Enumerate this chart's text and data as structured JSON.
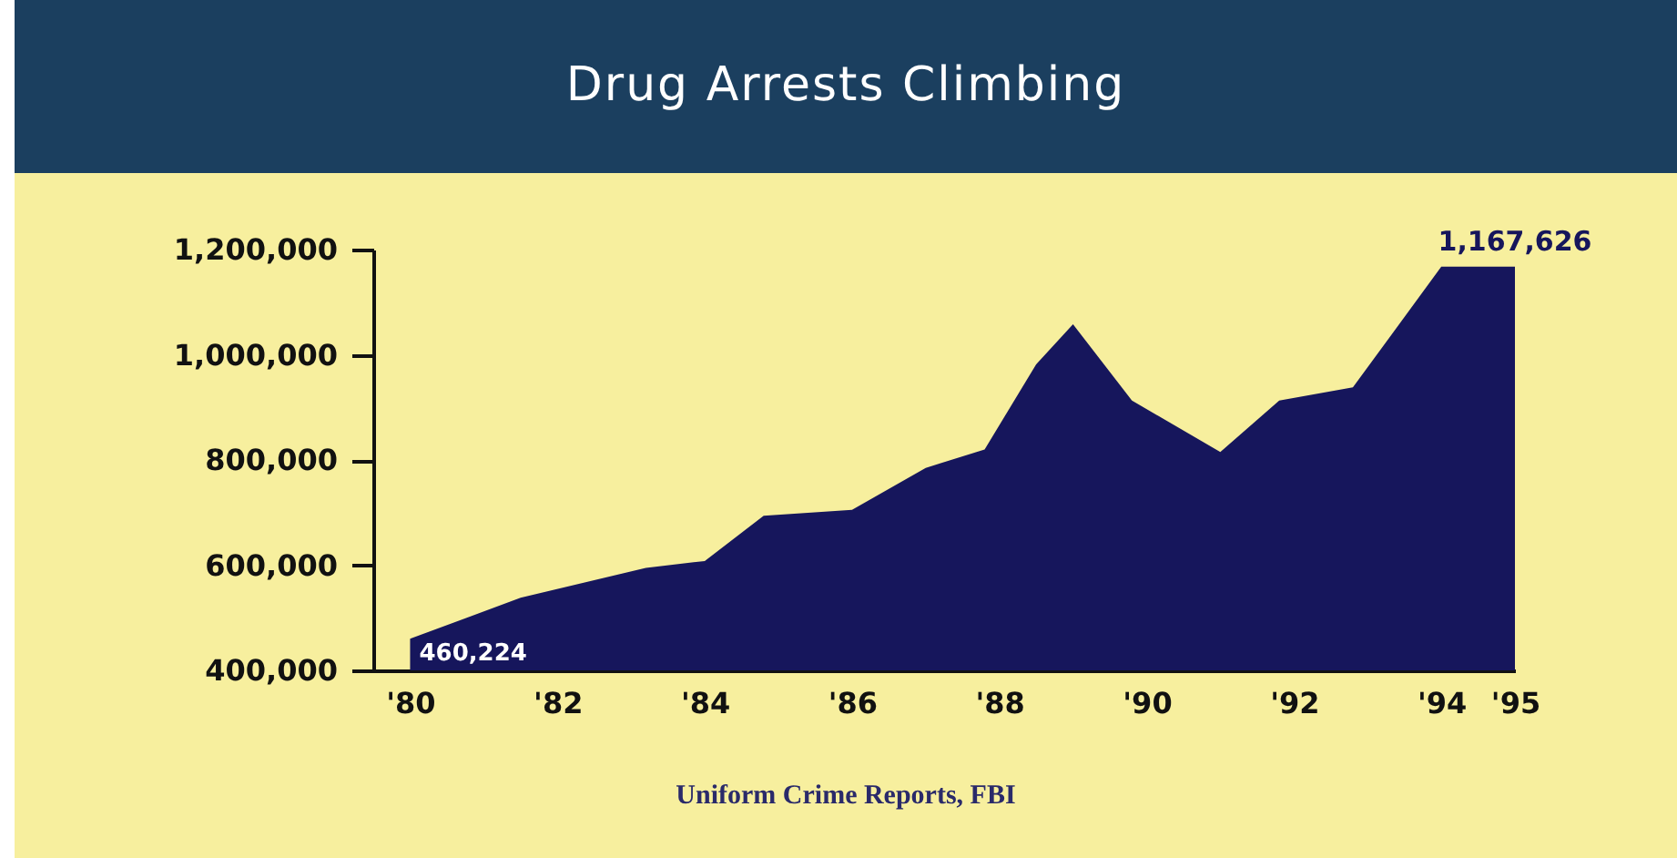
{
  "chart_data": {
    "type": "area",
    "title": "Drug Arrests Climbing",
    "x": [
      1980,
      1981.5,
      1983.2,
      1984,
      1984.8,
      1986,
      1987,
      1987.8,
      1988.5,
      1989,
      1989.8,
      1991,
      1991.8,
      1992.8,
      1994,
      1995
    ],
    "series": [
      {
        "color": "#16165c",
        "values": [
          460224,
          538000,
          595000,
          608000,
          694000,
          705000,
          785000,
          820000,
          982000,
          1058000,
          913000,
          815000,
          913000,
          938000,
          1167626,
          1167626
        ],
        "value_labels": [
          "460,224",
          null,
          null,
          null,
          null,
          null,
          null,
          null,
          null,
          null,
          null,
          null,
          null,
          null,
          null,
          "1,167,626"
        ]
      }
    ],
    "xlim": [
      1979.5,
      1995
    ],
    "ylim": [
      400000,
      1200000
    ],
    "xticks": [
      {
        "value": 1980,
        "label": "'80"
      },
      {
        "value": 1982,
        "label": "'82"
      },
      {
        "value": 1984,
        "label": "'84"
      },
      {
        "value": 1986,
        "label": "'86"
      },
      {
        "value": 1988,
        "label": "'88"
      },
      {
        "value": 1990,
        "label": "'90"
      },
      {
        "value": 1992,
        "label": "'92"
      },
      {
        "value": 1994,
        "label": "'94"
      },
      {
        "value": 1995,
        "label": "'95"
      }
    ],
    "yticks": [
      {
        "value": 400000,
        "label": "400,000"
      },
      {
        "value": 600000,
        "label": "600,000"
      },
      {
        "value": 800000,
        "label": "800,000"
      },
      {
        "value": 1000000,
        "label": "1,000,000"
      },
      {
        "value": 1200000,
        "label": "1,200,000"
      }
    ],
    "grid": false,
    "annotations": [
      "Uniform Crime Reports, FBI"
    ]
  }
}
